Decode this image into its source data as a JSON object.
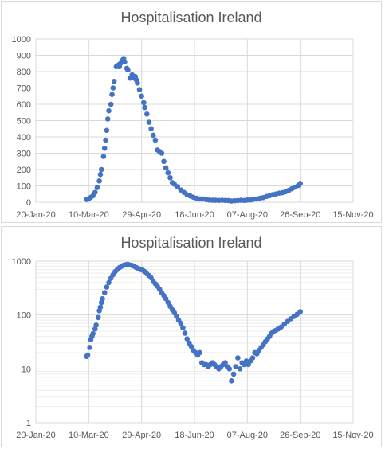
{
  "colors": {
    "marker": "#4472c4",
    "gridline": "#d9d9d9",
    "minor_gridline": "#ededed",
    "text": "#595959"
  },
  "chart_data": [
    {
      "type": "scatter",
      "title": "Hospitalisation Ireland",
      "yscale": "linear",
      "ylim": [
        0,
        1000
      ],
      "yticks": [
        "0",
        "100",
        "200",
        "300",
        "400",
        "500",
        "600",
        "700",
        "800",
        "900",
        "1000"
      ],
      "xticks": [
        "20-Jan-20",
        "10-Mar-20",
        "29-Apr-20",
        "18-Jun-20",
        "07-Aug-20",
        "26-Sep-20",
        "15-Nov-20"
      ],
      "xlim": [
        "2020-01-20",
        "2020-11-15"
      ],
      "grid": true,
      "legend": "none",
      "points": [
        [
          "2020-03-08",
          17
        ],
        [
          "2020-03-10",
          20
        ],
        [
          "2020-03-12",
          30
        ],
        [
          "2020-03-14",
          40
        ],
        [
          "2020-03-16",
          60
        ],
        [
          "2020-03-18",
          90
        ],
        [
          "2020-03-20",
          130
        ],
        [
          "2020-03-21",
          170
        ],
        [
          "2020-03-22",
          200
        ],
        [
          "2020-03-24",
          280
        ],
        [
          "2020-03-25",
          330
        ],
        [
          "2020-03-26",
          380
        ],
        [
          "2020-03-27",
          440
        ],
        [
          "2020-03-28",
          510
        ],
        [
          "2020-03-29",
          560
        ],
        [
          "2020-03-31",
          600
        ],
        [
          "2020-04-01",
          660
        ],
        [
          "2020-04-02",
          700
        ],
        [
          "2020-04-03",
          740
        ],
        [
          "2020-04-05",
          830
        ],
        [
          "2020-04-07",
          840
        ],
        [
          "2020-04-08",
          830
        ],
        [
          "2020-04-09",
          850
        ],
        [
          "2020-04-10",
          860
        ],
        [
          "2020-04-11",
          870
        ],
        [
          "2020-04-12",
          880
        ],
        [
          "2020-04-13",
          860
        ],
        [
          "2020-04-15",
          820
        ],
        [
          "2020-04-16",
          810
        ],
        [
          "2020-04-18",
          760
        ],
        [
          "2020-04-20",
          780
        ],
        [
          "2020-04-22",
          760
        ],
        [
          "2020-04-23",
          770
        ],
        [
          "2020-04-24",
          750
        ],
        [
          "2020-04-25",
          730
        ],
        [
          "2020-04-27",
          690
        ],
        [
          "2020-04-29",
          650
        ],
        [
          "2020-05-01",
          610
        ],
        [
          "2020-05-02",
          580
        ],
        [
          "2020-05-04",
          540
        ],
        [
          "2020-05-06",
          490
        ],
        [
          "2020-05-08",
          450
        ],
        [
          "2020-05-10",
          410
        ],
        [
          "2020-05-12",
          380
        ],
        [
          "2020-05-14",
          320
        ],
        [
          "2020-05-16",
          310
        ],
        [
          "2020-05-18",
          300
        ],
        [
          "2020-05-20",
          250
        ],
        [
          "2020-05-22",
          210
        ],
        [
          "2020-05-24",
          180
        ],
        [
          "2020-05-26",
          150
        ],
        [
          "2020-05-28",
          120
        ],
        [
          "2020-05-30",
          110
        ],
        [
          "2020-06-02",
          95
        ],
        [
          "2020-06-05",
          75
        ],
        [
          "2020-06-08",
          60
        ],
        [
          "2020-06-11",
          45
        ],
        [
          "2020-06-14",
          38
        ],
        [
          "2020-06-17",
          30
        ],
        [
          "2020-06-20",
          24
        ],
        [
          "2020-06-23",
          20
        ],
        [
          "2020-06-26",
          20
        ],
        [
          "2020-06-29",
          16
        ],
        [
          "2020-07-02",
          13
        ],
        [
          "2020-07-05",
          12
        ],
        [
          "2020-07-08",
          12
        ],
        [
          "2020-07-11",
          11
        ],
        [
          "2020-07-14",
          12
        ],
        [
          "2020-07-17",
          11
        ],
        [
          "2020-07-20",
          10
        ],
        [
          "2020-07-23",
          7
        ],
        [
          "2020-07-26",
          9
        ],
        [
          "2020-07-29",
          10
        ],
        [
          "2020-08-01",
          12
        ],
        [
          "2020-08-04",
          11
        ],
        [
          "2020-08-07",
          13
        ],
        [
          "2020-08-10",
          14
        ],
        [
          "2020-08-13",
          18
        ],
        [
          "2020-08-16",
          20
        ],
        [
          "2020-08-19",
          24
        ],
        [
          "2020-08-22",
          28
        ],
        [
          "2020-08-25",
          35
        ],
        [
          "2020-08-28",
          40
        ],
        [
          "2020-08-31",
          46
        ],
        [
          "2020-09-03",
          50
        ],
        [
          "2020-09-06",
          55
        ],
        [
          "2020-09-09",
          58
        ],
        [
          "2020-09-12",
          64
        ],
        [
          "2020-09-15",
          72
        ],
        [
          "2020-09-18",
          82
        ],
        [
          "2020-09-21",
          92
        ],
        [
          "2020-09-24",
          102
        ],
        [
          "2020-09-26",
          115
        ]
      ]
    },
    {
      "type": "scatter",
      "title": "Hospitalisation Ireland",
      "yscale": "log",
      "ylim": [
        1,
        1000
      ],
      "yticks": [
        "1",
        "10",
        "100",
        "1000"
      ],
      "xticks": [
        "20-Jan-20",
        "10-Mar-20",
        "29-Apr-20",
        "18-Jun-20",
        "07-Aug-20",
        "26-Sep-20",
        "15-Nov-20"
      ],
      "xlim": [
        "2020-01-20",
        "2020-11-15"
      ],
      "grid": true,
      "legend": "none",
      "points": [
        [
          "2020-03-08",
          17
        ],
        [
          "2020-03-09",
          18
        ],
        [
          "2020-03-11",
          25
        ],
        [
          "2020-03-12",
          35
        ],
        [
          "2020-03-13",
          40
        ],
        [
          "2020-03-14",
          45
        ],
        [
          "2020-03-16",
          55
        ],
        [
          "2020-03-17",
          65
        ],
        [
          "2020-03-19",
          90
        ],
        [
          "2020-03-20",
          120
        ],
        [
          "2020-03-21",
          140
        ],
        [
          "2020-03-22",
          170
        ],
        [
          "2020-03-23",
          200
        ],
        [
          "2020-03-25",
          260
        ],
        [
          "2020-03-27",
          330
        ],
        [
          "2020-03-29",
          400
        ],
        [
          "2020-03-31",
          480
        ],
        [
          "2020-04-02",
          560
        ],
        [
          "2020-04-04",
          640
        ],
        [
          "2020-04-06",
          700
        ],
        [
          "2020-04-08",
          760
        ],
        [
          "2020-04-10",
          800
        ],
        [
          "2020-04-12",
          840
        ],
        [
          "2020-04-14",
          860
        ],
        [
          "2020-04-16",
          870
        ],
        [
          "2020-04-18",
          850
        ],
        [
          "2020-04-20",
          830
        ],
        [
          "2020-04-22",
          800
        ],
        [
          "2020-04-24",
          760
        ],
        [
          "2020-04-26",
          730
        ],
        [
          "2020-04-28",
          700
        ],
        [
          "2020-04-30",
          680
        ],
        [
          "2020-05-02",
          640
        ],
        [
          "2020-05-04",
          580
        ],
        [
          "2020-05-06",
          540
        ],
        [
          "2020-05-08",
          490
        ],
        [
          "2020-05-10",
          420
        ],
        [
          "2020-05-12",
          380
        ],
        [
          "2020-05-14",
          340
        ],
        [
          "2020-05-16",
          300
        ],
        [
          "2020-05-18",
          260
        ],
        [
          "2020-05-20",
          230
        ],
        [
          "2020-05-22",
          200
        ],
        [
          "2020-05-24",
          170
        ],
        [
          "2020-05-26",
          145
        ],
        [
          "2020-05-28",
          125
        ],
        [
          "2020-05-30",
          110
        ],
        [
          "2020-06-01",
          95
        ],
        [
          "2020-06-03",
          80
        ],
        [
          "2020-06-05",
          70
        ],
        [
          "2020-06-07",
          58
        ],
        [
          "2020-06-09",
          46
        ],
        [
          "2020-06-11",
          36
        ],
        [
          "2020-06-13",
          30
        ],
        [
          "2020-06-15",
          26
        ],
        [
          "2020-06-17",
          22
        ],
        [
          "2020-06-19",
          20
        ],
        [
          "2020-06-21",
          18
        ],
        [
          "2020-06-23",
          20
        ],
        [
          "2020-06-25",
          13
        ],
        [
          "2020-06-27",
          12
        ],
        [
          "2020-06-29",
          12
        ],
        [
          "2020-07-01",
          11
        ],
        [
          "2020-07-03",
          12
        ],
        [
          "2020-07-05",
          13
        ],
        [
          "2020-07-07",
          12
        ],
        [
          "2020-07-09",
          11
        ],
        [
          "2020-07-11",
          10
        ],
        [
          "2020-07-13",
          11
        ],
        [
          "2020-07-15",
          12
        ],
        [
          "2020-07-17",
          13
        ],
        [
          "2020-07-19",
          11
        ],
        [
          "2020-07-21",
          10
        ],
        [
          "2020-07-23",
          6
        ],
        [
          "2020-07-25",
          8
        ],
        [
          "2020-07-27",
          11
        ],
        [
          "2020-07-29",
          16
        ],
        [
          "2020-07-31",
          10
        ],
        [
          "2020-08-02",
          13
        ],
        [
          "2020-08-04",
          12
        ],
        [
          "2020-08-06",
          14
        ],
        [
          "2020-08-08",
          12
        ],
        [
          "2020-08-10",
          14
        ],
        [
          "2020-08-12",
          16
        ],
        [
          "2020-08-14",
          20
        ],
        [
          "2020-08-16",
          19
        ],
        [
          "2020-08-18",
          22
        ],
        [
          "2020-08-20",
          25
        ],
        [
          "2020-08-22",
          28
        ],
        [
          "2020-08-24",
          32
        ],
        [
          "2020-08-26",
          36
        ],
        [
          "2020-08-28",
          40
        ],
        [
          "2020-08-30",
          46
        ],
        [
          "2020-09-01",
          50
        ],
        [
          "2020-09-03",
          52
        ],
        [
          "2020-09-05",
          55
        ],
        [
          "2020-09-08",
          60
        ],
        [
          "2020-09-11",
          68
        ],
        [
          "2020-09-14",
          76
        ],
        [
          "2020-09-17",
          85
        ],
        [
          "2020-09-20",
          94
        ],
        [
          "2020-09-23",
          103
        ],
        [
          "2020-09-26",
          115
        ]
      ]
    }
  ]
}
